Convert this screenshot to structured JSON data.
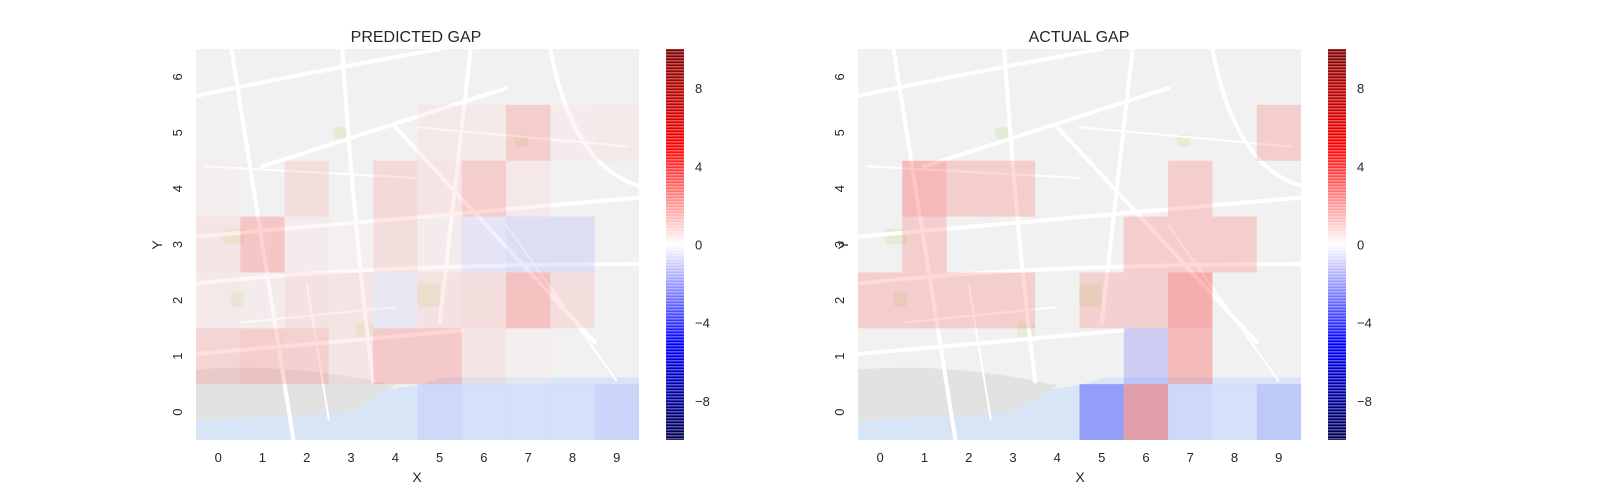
{
  "chart_data": [
    {
      "type": "heatmap",
      "title": "PREDICTED GAP",
      "xlabel": "X",
      "ylabel": "Y",
      "x": [
        0,
        1,
        2,
        3,
        4,
        5,
        6,
        7,
        8,
        9
      ],
      "y": [
        0,
        1,
        2,
        3,
        4,
        5,
        6
      ],
      "background": "map-overlay",
      "colormap": "seismic",
      "vmin": -10,
      "vmax": 10,
      "colorbar_ticks": [
        8,
        4,
        0,
        -4,
        -8
      ],
      "colorbar_tick_labels": [
        "8",
        "4",
        "0",
        "−4",
        "−8"
      ],
      "values": [
        [
          0,
          0,
          0,
          0,
          0,
          -1.0,
          -0.6,
          -0.6,
          -0.6,
          -1.2
        ],
        [
          1.6,
          2.0,
          1.8,
          0.8,
          2.2,
          2.2,
          0.8,
          0.3,
          0,
          0
        ],
        [
          0.6,
          0.4,
          1.0,
          0.8,
          -0.6,
          1.0,
          1.2,
          2.6,
          1.2,
          0
        ],
        [
          0.8,
          2.4,
          0.4,
          0.2,
          1.2,
          0.4,
          -0.8,
          -1.2,
          -1.2,
          0
        ],
        [
          0.3,
          0,
          1.2,
          0,
          1.4,
          0.8,
          2.0,
          0.6,
          0,
          0
        ],
        [
          0,
          0,
          0,
          0,
          0,
          0.6,
          0.6,
          2.0,
          0.4,
          0.6
        ],
        [
          0,
          0,
          0,
          0,
          0,
          0,
          0,
          0,
          0,
          0
        ]
      ]
    },
    {
      "type": "heatmap",
      "title": "ACTUAL GAP",
      "xlabel": "X",
      "ylabel": "Y",
      "x": [
        0,
        1,
        2,
        3,
        4,
        5,
        6,
        7,
        8,
        9
      ],
      "y": [
        0,
        1,
        2,
        3,
        4,
        5,
        6
      ],
      "background": "map-overlay",
      "colormap": "seismic",
      "vmin": -10,
      "vmax": 10,
      "colorbar_ticks": [
        8,
        4,
        0,
        -4,
        -8
      ],
      "colorbar_tick_labels": [
        "8",
        "4",
        "0",
        "−4",
        "−8"
      ],
      "values": [
        [
          0,
          0,
          0,
          0,
          0,
          -4.0,
          4.0,
          -1.0,
          -0.6,
          -1.8
        ],
        [
          0,
          0,
          0,
          0,
          0,
          0,
          -2.0,
          3.0,
          0,
          0
        ],
        [
          2.0,
          2.0,
          2.0,
          2.0,
          0,
          1.8,
          1.8,
          3.6,
          0,
          0
        ],
        [
          0,
          2.0,
          0,
          0,
          0,
          0,
          2.0,
          2.0,
          2.0,
          0
        ],
        [
          0,
          3.0,
          2.0,
          2.0,
          0,
          0,
          0,
          2.0,
          0,
          0
        ],
        [
          0,
          0,
          0,
          0,
          0,
          0,
          0,
          0,
          0,
          2.0
        ],
        [
          0,
          0,
          0,
          0,
          0,
          0,
          0,
          0,
          0,
          0
        ]
      ]
    }
  ]
}
